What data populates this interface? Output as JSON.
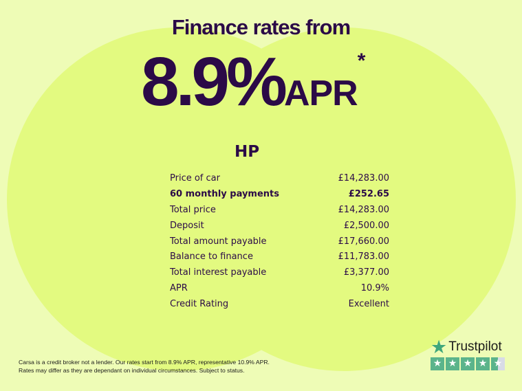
{
  "headline": "Finance rates from",
  "rate": {
    "value": "8.9%",
    "suffix": "APR",
    "asterisk": "*"
  },
  "product": "HP",
  "rows": [
    {
      "label": "Price of car",
      "value": "£14,283.00",
      "bold": false
    },
    {
      "label": "60 monthly payments",
      "value": "£252.65",
      "bold": true
    },
    {
      "label": "Total price",
      "value": "£14,283.00",
      "bold": false
    },
    {
      "label": "Deposit",
      "value": "£2,500.00",
      "bold": false
    },
    {
      "label": "Total amount payable",
      "value": "£17,660.00",
      "bold": false
    },
    {
      "label": "Balance to finance",
      "value": "£11,783.00",
      "bold": false
    },
    {
      "label": "Total interest payable",
      "value": "£3,377.00",
      "bold": false
    },
    {
      "label": "APR",
      "value": "10.9%",
      "bold": false
    },
    {
      "label": "Credit Rating",
      "value": "Excellent",
      "bold": false
    }
  ],
  "disclaimer": {
    "line1": "Carsa is a credit broker not a lender. Our rates start from 8.9% APR, representative 10.9% APR.",
    "line2": "Rates may differ as they are dependant on individual circumstances. Subject to status."
  },
  "trustpilot": {
    "name": "Trustpilot",
    "rating_stars": 4.5,
    "max_stars": 5,
    "star_color": "#5bb48b"
  },
  "colors": {
    "background": "#eefcb6",
    "circles": "#e3fa80",
    "text": "#2b0a47"
  }
}
